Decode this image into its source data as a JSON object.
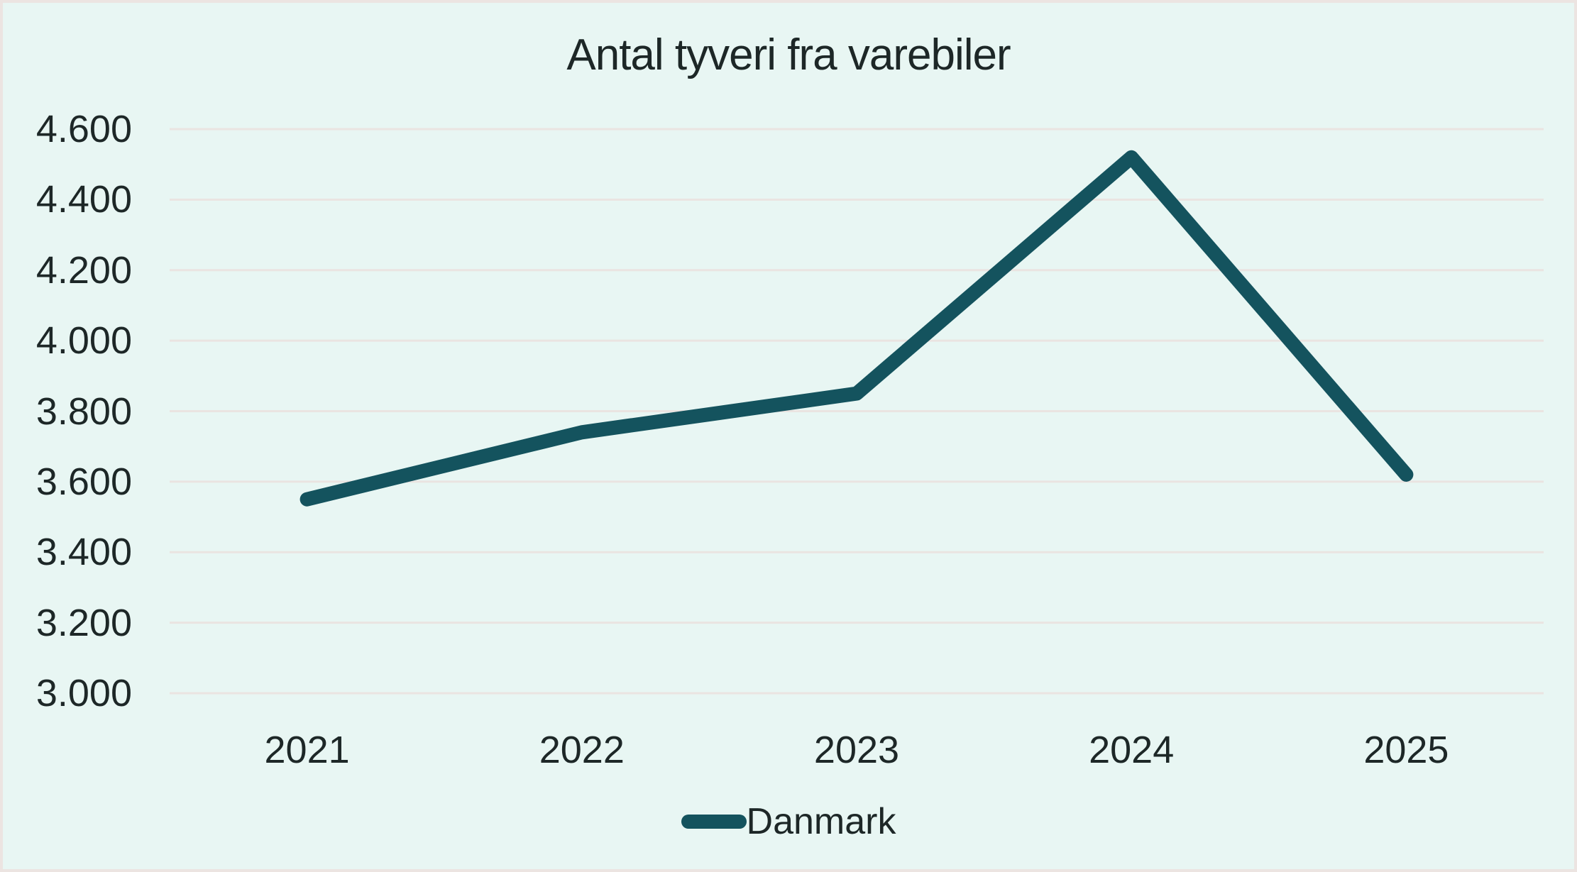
{
  "chart_data": {
    "type": "line",
    "title": "Antal tyveri fra varebiler",
    "categories": [
      "2021",
      "2022",
      "2023",
      "2024",
      "2025"
    ],
    "series": [
      {
        "name": "Danmark",
        "color": "#14535e",
        "values": [
          3550,
          3740,
          3850,
          4520,
          3620
        ]
      }
    ],
    "ylim": [
      3000,
      4600
    ],
    "yticks": [
      {
        "value": 3000,
        "label": "3.000"
      },
      {
        "value": 3200,
        "label": "3.200"
      },
      {
        "value": 3400,
        "label": "3.400"
      },
      {
        "value": 3600,
        "label": "3.600"
      },
      {
        "value": 3800,
        "label": "3.800"
      },
      {
        "value": 4000,
        "label": "4.000"
      },
      {
        "value": 4200,
        "label": "4.200"
      },
      {
        "value": 4400,
        "label": "4.400"
      },
      {
        "value": 4600,
        "label": "4.600"
      },
      {
        "value": 4800,
        "label": null
      }
    ],
    "grid": true,
    "legend_position": "bottom"
  },
  "colors": {
    "background": "#e8f6f3",
    "border": "#ece4e1",
    "gridline": "#eae4e1",
    "line": "#14535e",
    "text": "#1d2727"
  }
}
